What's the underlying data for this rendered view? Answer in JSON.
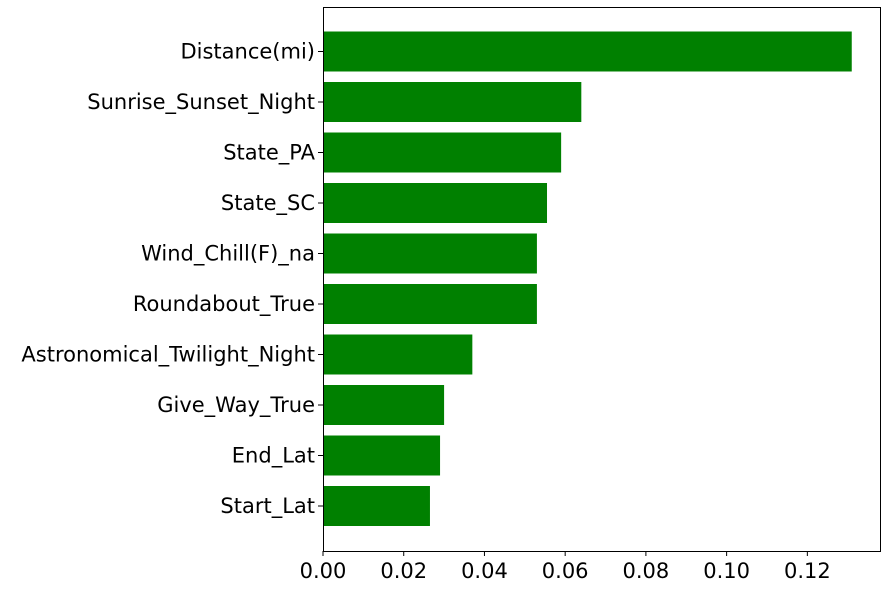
{
  "chart_data": {
    "type": "bar",
    "orientation": "horizontal",
    "title": "",
    "xlabel": "",
    "ylabel": "",
    "categories": [
      "Distance(mi)",
      "Sunrise_Sunset_Night",
      "State_PA",
      "State_SC",
      "Wind_Chill(F)_na",
      "Roundabout_True",
      "Astronomical_Twilight_Night",
      "Give_Way_True",
      "End_Lat",
      "Start_Lat"
    ],
    "values": [
      0.131,
      0.064,
      0.059,
      0.0555,
      0.053,
      0.053,
      0.037,
      0.03,
      0.029,
      0.0265
    ],
    "xlim": [
      0.0,
      0.138
    ],
    "x_ticks": [
      0.0,
      0.02,
      0.04,
      0.06,
      0.08,
      0.1,
      0.12
    ],
    "x_tick_labels": [
      "0.00",
      "0.02",
      "0.04",
      "0.06",
      "0.08",
      "0.10",
      "0.12"
    ],
    "bar_color": "#008000",
    "grid": false,
    "legend": "none"
  }
}
